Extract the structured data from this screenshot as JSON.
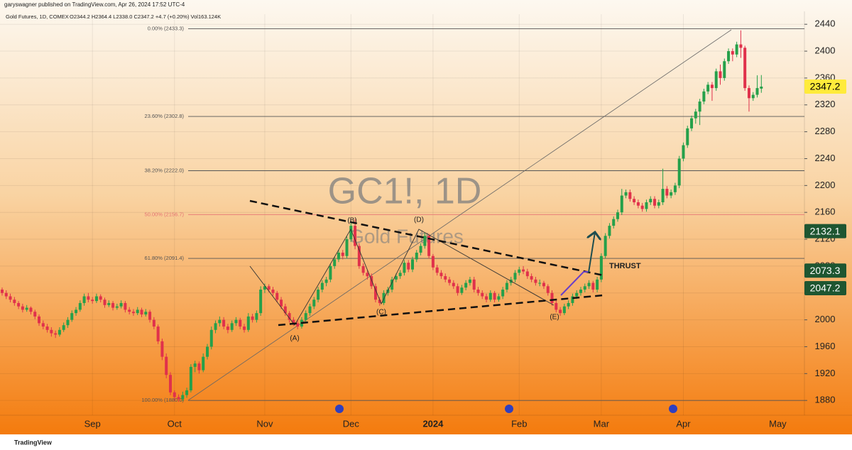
{
  "chart_data": {
    "type": "candlestick",
    "publisher_line": "garyswagner published on TradingView.com, Apr 26, 2024 17:52 UTC-4",
    "symbol_line": "Gold Futures, 1D, COMEX",
    "ohlc_line": "O2344.2  H2364.4  L2338.0  C2347.2  +4.7 (+0.20%)  Vol163.124K",
    "watermark_title": "GC1!, 1D",
    "watermark_subtitle": "Gold Futures",
    "footer": "TradingView",
    "up_color": "#25a04a",
    "down_color": "#e0314b",
    "grid": true,
    "ylim": [
      1858,
      2455
    ],
    "yticks": [
      1880,
      1920,
      1960,
      2000,
      2040,
      2080,
      2120,
      2160,
      2200,
      2240,
      2280,
      2320,
      2360,
      2400,
      2440
    ],
    "categories": [
      null,
      null,
      null,
      null,
      null,
      null,
      null,
      null,
      null,
      null,
      null,
      null,
      null,
      null,
      null,
      null,
      null,
      null,
      null,
      null,
      null,
      null,
      "Sep",
      null,
      null,
      null,
      null,
      null,
      null,
      null,
      null,
      null,
      null,
      null,
      null,
      null,
      null,
      null,
      null,
      null,
      null,
      null,
      "Oct",
      null,
      null,
      null,
      null,
      null,
      null,
      null,
      null,
      null,
      null,
      null,
      null,
      null,
      null,
      null,
      null,
      null,
      null,
      null,
      null,
      null,
      "Nov",
      null,
      null,
      null,
      null,
      null,
      null,
      null,
      null,
      null,
      null,
      null,
      null,
      null,
      null,
      null,
      null,
      null,
      null,
      null,
      null,
      "Dec",
      null,
      null,
      null,
      null,
      null,
      null,
      null,
      null,
      null,
      null,
      null,
      null,
      null,
      null,
      null,
      null,
      null,
      null,
      null,
      "2024",
      null,
      null,
      null,
      null,
      null,
      null,
      null,
      null,
      null,
      null,
      null,
      null,
      null,
      null,
      null,
      null,
      null,
      null,
      null,
      null,
      "Feb",
      null,
      null,
      null,
      null,
      null,
      null,
      null,
      null,
      null,
      null,
      null,
      null,
      null,
      null,
      null,
      null,
      null,
      null,
      null,
      "Mar",
      null,
      null,
      null,
      null,
      null,
      null,
      null,
      null,
      null,
      null,
      null,
      null,
      null,
      null,
      null,
      null,
      null,
      null,
      null,
      "Apr",
      null,
      null,
      null,
      null,
      null,
      null,
      null,
      null,
      null,
      null,
      null,
      null,
      null,
      null,
      null,
      null,
      null,
      null,
      null
    ],
    "x_after": "May",
    "ohlc": [
      [
        2045,
        2048,
        2036,
        2040
      ],
      [
        2040,
        2044,
        2031,
        2035
      ],
      [
        2035,
        2039,
        2026,
        2030
      ],
      [
        2030,
        2034,
        2021,
        2025
      ],
      [
        2025,
        2028,
        2016,
        2020
      ],
      [
        2020,
        2024,
        2011,
        2015
      ],
      [
        2015,
        2022,
        2012,
        2018
      ],
      [
        2018,
        2020,
        2008,
        2012
      ],
      [
        2012,
        2015,
        2001,
        2005
      ],
      [
        2005,
        2008,
        1991,
        1995
      ],
      [
        1995,
        1999,
        1986,
        1990
      ],
      [
        1990,
        1994,
        1981,
        1985
      ],
      [
        1985,
        1989,
        1975,
        1980
      ],
      [
        1980,
        1984,
        1973,
        1978
      ],
      [
        1978,
        1989,
        1975,
        1985
      ],
      [
        1985,
        1996,
        1982,
        1992
      ],
      [
        1992,
        2004,
        1988,
        2000
      ],
      [
        2000,
        2014,
        1997,
        2010
      ],
      [
        2010,
        2019,
        2006,
        2015
      ],
      [
        2015,
        2029,
        2012,
        2025
      ],
      [
        2025,
        2039,
        2021,
        2035
      ],
      [
        2035,
        2040,
        2026,
        2030
      ],
      [
        2030,
        2034,
        2024,
        2028
      ],
      [
        2028,
        2039,
        2025,
        2035
      ],
      [
        2035,
        2038,
        2026,
        2030
      ],
      [
        2030,
        2033,
        2018,
        2022
      ],
      [
        2022,
        2029,
        2019,
        2025
      ],
      [
        2025,
        2028,
        2014,
        2018
      ],
      [
        2018,
        2024,
        2015,
        2020
      ],
      [
        2020,
        2029,
        2017,
        2025
      ],
      [
        2025,
        2028,
        2011,
        2015
      ],
      [
        2015,
        2019,
        2008,
        2012
      ],
      [
        2012,
        2016,
        2006,
        2010
      ],
      [
        2010,
        2019,
        2007,
        2015
      ],
      [
        2015,
        2018,
        2004,
        2008
      ],
      [
        2008,
        2016,
        2005,
        2012
      ],
      [
        2012,
        2015,
        1996,
        2000
      ],
      [
        2000,
        2004,
        1986,
        1990
      ],
      [
        1990,
        1993,
        1964,
        1968
      ],
      [
        1968,
        1972,
        1940,
        1945
      ],
      [
        1945,
        1950,
        1913,
        1918
      ],
      [
        1918,
        1922,
        1888,
        1892
      ],
      [
        1892,
        1895,
        1880,
        1885
      ],
      [
        1885,
        1889,
        1878,
        1882
      ],
      [
        1882,
        1893,
        1879,
        1888
      ],
      [
        1888,
        1899,
        1884,
        1895
      ],
      [
        1895,
        1934,
        1892,
        1930
      ],
      [
        1930,
        1939,
        1922,
        1935
      ],
      [
        1935,
        1938,
        1920,
        1925
      ],
      [
        1925,
        1950,
        1922,
        1945
      ],
      [
        1945,
        1964,
        1941,
        1960
      ],
      [
        1960,
        1990,
        1956,
        1985
      ],
      [
        1985,
        1999,
        1980,
        1995
      ],
      [
        1995,
        2005,
        1990,
        2000
      ],
      [
        2000,
        2004,
        1986,
        1990
      ],
      [
        1990,
        1994,
        1980,
        1985
      ],
      [
        1985,
        1999,
        1982,
        1995
      ],
      [
        1995,
        2004,
        1991,
        2000
      ],
      [
        2000,
        2003,
        1986,
        1990
      ],
      [
        1990,
        1994,
        1981,
        1985
      ],
      [
        1985,
        2010,
        1982,
        2005
      ],
      [
        2005,
        2009,
        1996,
        2000
      ],
      [
        2000,
        2014,
        1996,
        2010
      ],
      [
        2010,
        2050,
        2006,
        2045
      ],
      [
        2045,
        2054,
        2040,
        2050
      ],
      [
        2050,
        2053,
        2041,
        2045
      ],
      [
        2045,
        2049,
        2036,
        2040
      ],
      [
        2040,
        2043,
        2026,
        2030
      ],
      [
        2030,
        2034,
        2016,
        2020
      ],
      [
        2020,
        2024,
        2006,
        2010
      ],
      [
        2010,
        2013,
        1996,
        2000
      ],
      [
        2000,
        2004,
        1991,
        1995
      ],
      [
        1995,
        1999,
        1986,
        1990
      ],
      [
        1990,
        2004,
        1987,
        2000
      ],
      [
        2000,
        2014,
        1996,
        2010
      ],
      [
        2010,
        2024,
        2006,
        2020
      ],
      [
        2020,
        2034,
        2016,
        2030
      ],
      [
        2030,
        2049,
        2026,
        2045
      ],
      [
        2045,
        2059,
        2041,
        2055
      ],
      [
        2055,
        2064,
        2050,
        2060
      ],
      [
        2060,
        2084,
        2056,
        2080
      ],
      [
        2080,
        2094,
        2076,
        2090
      ],
      [
        2090,
        2104,
        2086,
        2100
      ],
      [
        2100,
        2104,
        2090,
        2095
      ],
      [
        2095,
        2124,
        2091,
        2120
      ],
      [
        2120,
        2145,
        2116,
        2140
      ],
      [
        2140,
        2150,
        2105,
        2110
      ],
      [
        2110,
        2114,
        2076,
        2080
      ],
      [
        2080,
        2084,
        2066,
        2070
      ],
      [
        2070,
        2074,
        2060,
        2065
      ],
      [
        2065,
        2069,
        2046,
        2050
      ],
      [
        2050,
        2054,
        2026,
        2030
      ],
      [
        2030,
        2034,
        2021,
        2025
      ],
      [
        2025,
        2044,
        2022,
        2040
      ],
      [
        2040,
        2049,
        2036,
        2045
      ],
      [
        2045,
        2064,
        2041,
        2060
      ],
      [
        2060,
        2069,
        2056,
        2065
      ],
      [
        2065,
        2074,
        2061,
        2070
      ],
      [
        2070,
        2089,
        2066,
        2085
      ],
      [
        2085,
        2089,
        2071,
        2075
      ],
      [
        2075,
        2094,
        2071,
        2090
      ],
      [
        2090,
        2104,
        2086,
        2100
      ],
      [
        2100,
        2114,
        2096,
        2110
      ],
      [
        2110,
        2130,
        2106,
        2125
      ],
      [
        2125,
        2128,
        2091,
        2095
      ],
      [
        2095,
        2098,
        2074,
        2078
      ],
      [
        2078,
        2082,
        2066,
        2070
      ],
      [
        2070,
        2074,
        2061,
        2065
      ],
      [
        2065,
        2069,
        2056,
        2060
      ],
      [
        2060,
        2064,
        2051,
        2055
      ],
      [
        2055,
        2059,
        2046,
        2050
      ],
      [
        2050,
        2054,
        2036,
        2040
      ],
      [
        2040,
        2052,
        2037,
        2048
      ],
      [
        2048,
        2059,
        2044,
        2055
      ],
      [
        2055,
        2064,
        2051,
        2060
      ],
      [
        2060,
        2064,
        2041,
        2045
      ],
      [
        2045,
        2049,
        2036,
        2040
      ],
      [
        2040,
        2044,
        2031,
        2035
      ],
      [
        2035,
        2039,
        2026,
        2030
      ],
      [
        2030,
        2044,
        2027,
        2040
      ],
      [
        2040,
        2043,
        2026,
        2030
      ],
      [
        2030,
        2039,
        2027,
        2035
      ],
      [
        2035,
        2049,
        2031,
        2045
      ],
      [
        2045,
        2059,
        2041,
        2055
      ],
      [
        2055,
        2064,
        2051,
        2060
      ],
      [
        2060,
        2074,
        2056,
        2070
      ],
      [
        2070,
        2079,
        2066,
        2075
      ],
      [
        2075,
        2080,
        2068,
        2072
      ],
      [
        2072,
        2076,
        2061,
        2065
      ],
      [
        2065,
        2069,
        2056,
        2060
      ],
      [
        2060,
        2064,
        2051,
        2055
      ],
      [
        2055,
        2060,
        2050,
        2055
      ],
      [
        2055,
        2058,
        2046,
        2050
      ],
      [
        2050,
        2053,
        2036,
        2040
      ],
      [
        2040,
        2044,
        2021,
        2025
      ],
      [
        2025,
        2029,
        2011,
        2015
      ],
      [
        2015,
        2019,
        2006,
        2010
      ],
      [
        2010,
        2024,
        2007,
        2020
      ],
      [
        2020,
        2029,
        2016,
        2025
      ],
      [
        2025,
        2039,
        2021,
        2035
      ],
      [
        2035,
        2044,
        2031,
        2040
      ],
      [
        2040,
        2049,
        2036,
        2045
      ],
      [
        2045,
        2054,
        2041,
        2050
      ],
      [
        2050,
        2059,
        2046,
        2055
      ],
      [
        2055,
        2058,
        2041,
        2045
      ],
      [
        2045,
        2064,
        2041,
        2060
      ],
      [
        2060,
        2099,
        2056,
        2095
      ],
      [
        2095,
        2129,
        2091,
        2125
      ],
      [
        2125,
        2144,
        2121,
        2140
      ],
      [
        2140,
        2154,
        2136,
        2150
      ],
      [
        2150,
        2164,
        2146,
        2160
      ],
      [
        2160,
        2195,
        2156,
        2185
      ],
      [
        2185,
        2194,
        2181,
        2190
      ],
      [
        2190,
        2194,
        2176,
        2180
      ],
      [
        2180,
        2184,
        2171,
        2175
      ],
      [
        2175,
        2179,
        2166,
        2170
      ],
      [
        2170,
        2174,
        2161,
        2165
      ],
      [
        2165,
        2179,
        2161,
        2175
      ],
      [
        2175,
        2184,
        2171,
        2180
      ],
      [
        2180,
        2184,
        2166,
        2170
      ],
      [
        2170,
        2179,
        2166,
        2175
      ],
      [
        2175,
        2225,
        2171,
        2195
      ],
      [
        2195,
        2199,
        2181,
        2185
      ],
      [
        2185,
        2194,
        2181,
        2190
      ],
      [
        2190,
        2204,
        2186,
        2200
      ],
      [
        2200,
        2244,
        2196,
        2240
      ],
      [
        2240,
        2264,
        2236,
        2260
      ],
      [
        2260,
        2289,
        2256,
        2285
      ],
      [
        2285,
        2304,
        2281,
        2300
      ],
      [
        2300,
        2314,
        2292,
        2310
      ],
      [
        2310,
        2329,
        2290,
        2325
      ],
      [
        2325,
        2344,
        2321,
        2340
      ],
      [
        2340,
        2354,
        2336,
        2350
      ],
      [
        2350,
        2354,
        2326,
        2345
      ],
      [
        2345,
        2374,
        2341,
        2370
      ],
      [
        2370,
        2380,
        2350,
        2360
      ],
      [
        2360,
        2389,
        2356,
        2385
      ],
      [
        2385,
        2404,
        2381,
        2400
      ],
      [
        2400,
        2404,
        2385,
        2395
      ],
      [
        2395,
        2414,
        2391,
        2410
      ],
      [
        2410,
        2431,
        2390,
        2405
      ],
      [
        2405,
        2408,
        2341,
        2345
      ],
      [
        2345,
        2349,
        2310,
        2330
      ],
      [
        2330,
        2339,
        2326,
        2335
      ],
      [
        2335,
        2364,
        2331,
        2345
      ],
      [
        2344.2,
        2364.4,
        2338.0,
        2347.2
      ]
    ],
    "fib_levels": [
      {
        "label": "0.00% (2433.3)",
        "value": 2433.3,
        "color": "#555555"
      },
      {
        "label": "23.60% (2302.8)",
        "value": 2302.8,
        "color": "#555555"
      },
      {
        "label": "38.20% (2222.0)",
        "value": 2222.0,
        "color": "#555555"
      },
      {
        "label": "50.00% (2156.7)",
        "value": 2156.7,
        "color": "#e57373"
      },
      {
        "label": "61.80% (2091.4)",
        "value": 2091.4,
        "color": "#555555"
      },
      {
        "label": "100.00% (1880.0)",
        "value": 1880.0,
        "color": "#555555"
      }
    ],
    "price_tags": [
      {
        "value": 2347.2,
        "color": "#ffeb3b",
        "text_color": "#000000"
      },
      {
        "value": 2132.1,
        "color": "#1e5631",
        "text_color": "#ffffff"
      },
      {
        "value": 2073.3,
        "color": "#1e5631",
        "text_color": "#ffffff"
      },
      {
        "value": 2047.2,
        "color": "#1e5631",
        "text_color": "#ffffff"
      }
    ],
    "annotations": {
      "A": "(A)",
      "B": "(B)",
      "C": "(C)",
      "D": "(D)",
      "E": "(E)",
      "thrust": "THRUST"
    }
  }
}
